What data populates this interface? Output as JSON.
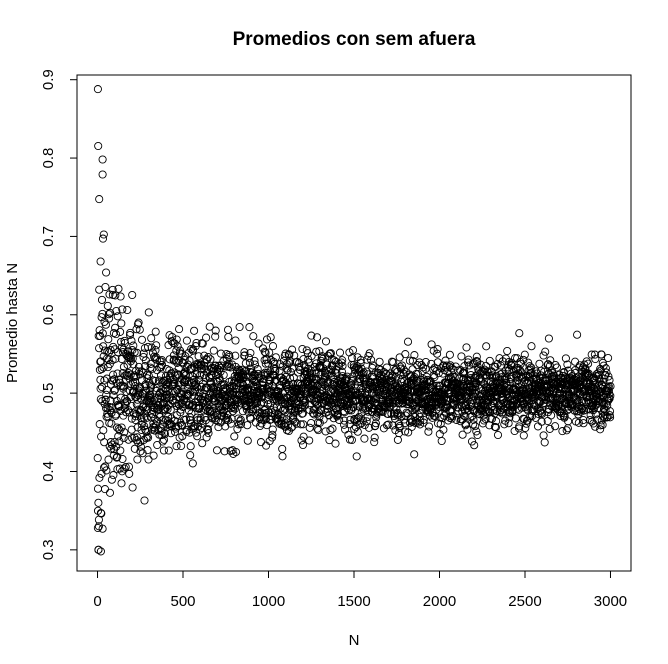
{
  "chart_data": {
    "type": "scatter",
    "title": "Promedios con sem afuera",
    "xlabel": "N",
    "ylabel": "Promedio hasta N",
    "xlim": [
      -120,
      3120
    ],
    "ylim": [
      0.273,
      0.906
    ],
    "xticks": [
      0,
      500,
      1000,
      1500,
      2000,
      2500,
      3000
    ],
    "yticks": [
      0.3,
      0.4,
      0.5,
      0.6,
      0.7,
      0.8,
      0.9
    ],
    "xtick_labels": [
      "0",
      "500",
      "1000",
      "1500",
      "2000",
      "2500",
      "3000"
    ],
    "ytick_labels": [
      "0.3",
      "0.4",
      "0.5",
      "0.6",
      "0.7",
      "0.8",
      "0.9"
    ],
    "grid": false,
    "legend": "none",
    "marker": "open-circle",
    "n_points": 3000,
    "mean": 0.5,
    "sample_points": [
      {
        "x": 2,
        "y": 0.888
      },
      {
        "x": 30,
        "y": 0.779
      },
      {
        "x": 18,
        "y": 0.668
      },
      {
        "x": 50,
        "y": 0.654
      },
      {
        "x": 10,
        "y": 0.632
      },
      {
        "x": 70,
        "y": 0.626
      },
      {
        "x": 20,
        "y": 0.298
      },
      {
        "x": 30,
        "y": 0.327
      },
      {
        "x": 8,
        "y": 0.33
      },
      {
        "x": 5,
        "y": 0.36
      },
      {
        "x": 20,
        "y": 0.347
      },
      {
        "x": 3,
        "y": 0.378
      },
      {
        "x": 300,
        "y": 0.603
      },
      {
        "x": 240,
        "y": 0.59
      },
      {
        "x": 1150,
        "y": 0.548
      },
      {
        "x": 1280,
        "y": 0.538
      },
      {
        "x": 1650,
        "y": 0.54
      },
      {
        "x": 2450,
        "y": 0.53
      },
      {
        "x": 1100,
        "y": 0.457
      },
      {
        "x": 1300,
        "y": 0.462
      },
      {
        "x": 2000,
        "y": 0.482
      }
    ]
  }
}
